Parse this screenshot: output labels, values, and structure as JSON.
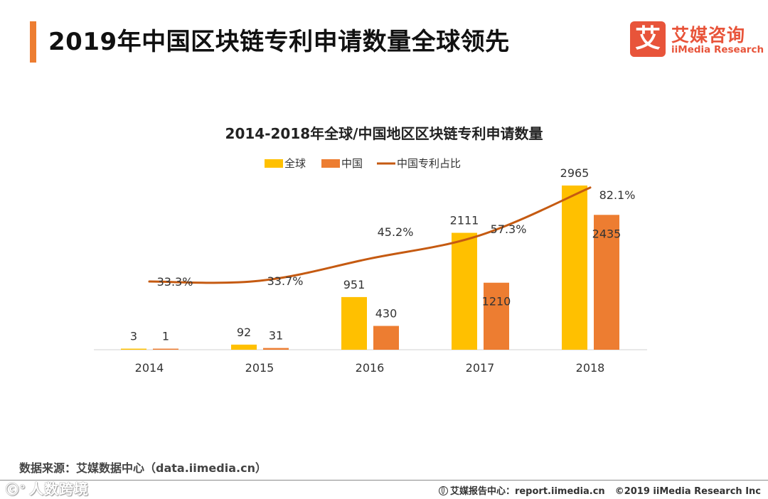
{
  "header": {
    "title": "2019年中国区块链专利申请数量全球领先"
  },
  "logo": {
    "mark": "艾",
    "cn": "艾媒咨询",
    "en": "iiMedia Research"
  },
  "chart_data": {
    "type": "bar",
    "title": "2014-2018年全球/中国地区区块链专利申请数量",
    "categories": [
      "2014",
      "2015",
      "2016",
      "2017",
      "2018"
    ],
    "series": [
      {
        "name": "全球",
        "type": "bar",
        "color": "#ffc000",
        "values": [
          3,
          92,
          951,
          2111,
          2965
        ],
        "labels": [
          "3",
          "92",
          "951",
          "2111",
          "2965"
        ]
      },
      {
        "name": "中国",
        "type": "bar",
        "color": "#ed7d31",
        "values": [
          1,
          31,
          430,
          1210,
          2435
        ],
        "labels": [
          "1",
          "31",
          "430",
          "1210",
          "2435"
        ]
      },
      {
        "name": "中国专利占比",
        "type": "line",
        "color": "#c55a11",
        "values": [
          33.3,
          33.7,
          45.2,
          57.3,
          82.1
        ],
        "labels": [
          "33.3%",
          "33.7%",
          "45.2%",
          "57.3%",
          "82.1%"
        ]
      }
    ],
    "ylim": [
      0,
      2965
    ],
    "grid": false,
    "legend": "top"
  },
  "source": "数据来源：艾媒数据中心（data.iimedia.cn）",
  "watermark": "人数跨境",
  "footer": {
    "report": "艾媒报告中心：report.iimedia.cn",
    "copyright": "©2019  iiMedia Research  Inc"
  }
}
